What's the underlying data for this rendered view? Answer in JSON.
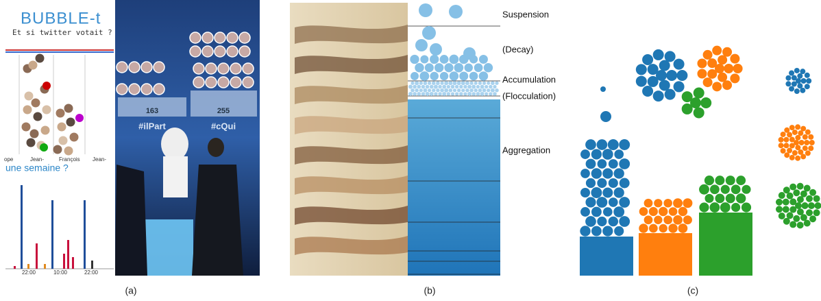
{
  "panels": [
    {
      "caption": "(a)",
      "app_title": "BUBBLE-t",
      "app_subtitle": "Et si twitter votait ?",
      "candidates": [
        "ope",
        "Jean-",
        "François",
        "Jean-"
      ],
      "question": "une semaine ?",
      "times": [
        "22:00",
        "10:00",
        "22:00"
      ],
      "stage": [
        {
          "count": 163,
          "hashtag": "#ilPart"
        },
        {
          "count": 255,
          "hashtag": "#cQui"
        }
      ]
    },
    {
      "caption": "(b)",
      "layers": [
        "Suspension",
        "(Decay)",
        "Accumulation",
        "(Flocculation)",
        "Aggregation"
      ]
    },
    {
      "caption": "(c)"
    }
  ]
}
